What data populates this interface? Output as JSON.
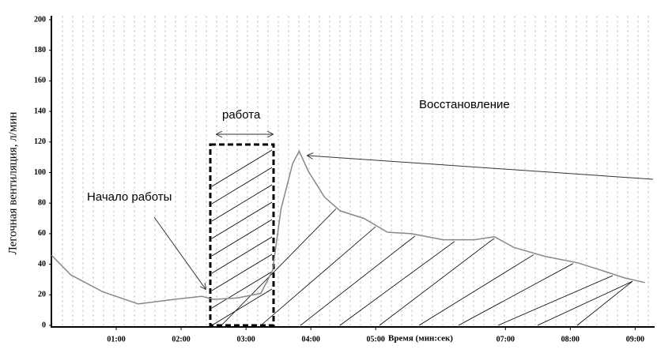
{
  "chart_data": {
    "type": "line",
    "y_label": "Легочная вентиляция, л/мин",
    "x_label": "Время (мин:сек)",
    "annotations": [
      "Начало работы",
      "работа",
      "Восстановление"
    ],
    "xlim": [
      0,
      9.3
    ],
    "ylim": [
      0,
      200
    ],
    "xticks": [
      {
        "value": 1,
        "label": "01:00"
      },
      {
        "value": 2,
        "label": "02:00"
      },
      {
        "value": 3,
        "label": "03:00"
      },
      {
        "value": 4,
        "label": "04:00"
      },
      {
        "value": 5,
        "label": "05:00"
      },
      {
        "value": 7,
        "label": "07:00"
      },
      {
        "value": 8,
        "label": "08:00"
      },
      {
        "value": 9,
        "label": "09:00"
      }
    ],
    "yticks": [
      0,
      20,
      40,
      60,
      80,
      100,
      120,
      140,
      160,
      180,
      200
    ],
    "color": "#888888",
    "x": [
      0,
      0.3,
      0.79,
      1.34,
      1.89,
      2.32,
      2.5,
      2.87,
      3.23,
      3.41,
      3.54,
      3.72,
      3.82,
      3.96,
      4.21,
      4.45,
      4.82,
      5.18,
      5.55,
      6.04,
      6.52,
      6.83,
      7.13,
      7.62,
      8.11,
      8.48,
      8.84,
      9.15
    ],
    "values": [
      46,
      33,
      22,
      14,
      17,
      19,
      17,
      18,
      21,
      36,
      76,
      106,
      114,
      101,
      84,
      75,
      70,
      61,
      60,
      56,
      56,
      58,
      51,
      45,
      41,
      36,
      31,
      28
    ]
  }
}
